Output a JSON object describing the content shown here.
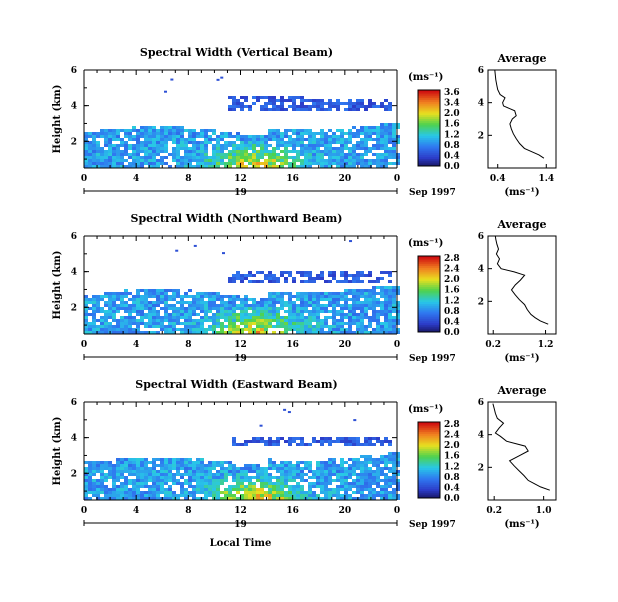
{
  "chart_data": [
    {
      "type": "heatmap",
      "title": "Spectral Width (Vertical Beam)",
      "ylabel": "Height (km)",
      "yticks": [
        "6",
        "4",
        "2"
      ],
      "xticks": [
        "0",
        "4",
        "8",
        "12",
        "16",
        "20",
        "0"
      ],
      "xlim": [
        0,
        24
      ],
      "ylim": [
        0.5,
        6.0
      ],
      "date_marker": "19",
      "date_suffix": "Sep 1997",
      "colorbar": {
        "unit": "(ms⁻¹)",
        "ticks": [
          "3.6",
          "3.4",
          "2.0",
          "1.6",
          "1.2",
          "0.8",
          "0.4",
          "0.0"
        ],
        "max": 3.6
      },
      "main_band_top_km": 2.6,
      "high_layer_km": [
        3.8,
        4.6
      ],
      "average": {
        "title": "Average",
        "xlabel": "(ms⁻¹)",
        "xticks": [
          "0.4",
          "1.4"
        ],
        "xlim": [
          0.2,
          1.6
        ],
        "yticks": [
          "6",
          "4",
          "2"
        ],
        "ylim": [
          0,
          6
        ],
        "height_km": [
          0.6,
          0.8,
          1.0,
          1.2,
          1.5,
          1.8,
          2.1,
          2.4,
          2.7,
          3.0,
          3.2,
          3.5,
          3.8,
          4.0,
          4.3,
          4.5,
          4.8,
          5.1,
          5.4,
          5.7,
          6.0
        ],
        "values": [
          1.35,
          1.25,
          1.1,
          0.95,
          0.85,
          0.78,
          0.72,
          0.68,
          0.65,
          0.7,
          0.78,
          0.75,
          0.52,
          0.5,
          0.55,
          0.45,
          0.4,
          0.38,
          0.36,
          0.35,
          0.34
        ]
      }
    },
    {
      "type": "heatmap",
      "title": "Spectral Width (Northward Beam)",
      "ylabel": "Height (km)",
      "yticks": [
        "6",
        "4",
        "2"
      ],
      "xticks": [
        "0",
        "4",
        "8",
        "12",
        "16",
        "20",
        "0"
      ],
      "xlim": [
        0,
        24
      ],
      "ylim": [
        0.5,
        6.0
      ],
      "date_marker": "19",
      "date_suffix": "Sep 1997",
      "colorbar": {
        "unit": "(ms⁻¹)",
        "ticks": [
          "2.8",
          "2.4",
          "2.0",
          "1.6",
          "1.2",
          "0.8",
          "0.4",
          "0.0"
        ],
        "max": 2.8
      },
      "main_band_top_km": 2.8,
      "high_layer_km": [
        3.5,
        4.2
      ],
      "average": {
        "title": "Average",
        "xlabel": "(ms⁻¹)",
        "xticks": [
          "0.2",
          "1.2"
        ],
        "xlim": [
          0.1,
          1.4
        ],
        "yticks": [
          "6",
          "4",
          "2"
        ],
        "ylim": [
          0,
          6
        ],
        "height_km": [
          0.6,
          0.8,
          1.0,
          1.2,
          1.5,
          1.8,
          2.1,
          2.4,
          2.7,
          3.0,
          3.3,
          3.6,
          3.8,
          4.0,
          4.3,
          4.6,
          4.9,
          5.2,
          5.5,
          5.8,
          6.0
        ],
        "values": [
          1.25,
          1.1,
          1.0,
          0.92,
          0.85,
          0.8,
          0.7,
          0.62,
          0.55,
          0.62,
          0.72,
          0.8,
          0.6,
          0.35,
          0.28,
          0.32,
          0.26,
          0.3,
          0.27,
          0.25,
          0.24
        ]
      }
    },
    {
      "type": "heatmap",
      "title": "Spectral Width (Eastward Beam)",
      "ylabel": "Height (km)",
      "yticks": [
        "6",
        "4",
        "2"
      ],
      "xticks": [
        "0",
        "4",
        "8",
        "12",
        "16",
        "20",
        "0"
      ],
      "xlim": [
        0,
        24
      ],
      "ylim": [
        0.5,
        6.0
      ],
      "date_marker": "19",
      "date_suffix": "Sep 1997",
      "xlabel": "Local Time",
      "colorbar": {
        "unit": "(ms⁻¹)",
        "ticks": [
          "2.8",
          "2.4",
          "2.0",
          "1.6",
          "1.2",
          "0.8",
          "0.4",
          "0.0"
        ],
        "max": 2.8
      },
      "main_band_top_km": 2.7,
      "high_layer_km": [
        3.6,
        4.2
      ],
      "average": {
        "title": "Average",
        "xlabel": "(ms⁻¹)",
        "xticks": [
          "0.2",
          "1.0"
        ],
        "xlim": [
          0.1,
          1.2
        ],
        "yticks": [
          "6",
          "4",
          "2"
        ],
        "ylim": [
          0,
          6
        ],
        "height_km": [
          0.6,
          0.8,
          1.0,
          1.2,
          1.5,
          1.8,
          2.1,
          2.4,
          2.7,
          3.0,
          3.3,
          3.6,
          3.9,
          4.1,
          4.4,
          4.7,
          5.0,
          5.3,
          5.6,
          5.9
        ],
        "values": [
          1.1,
          0.95,
          0.85,
          0.75,
          0.68,
          0.6,
          0.52,
          0.45,
          0.6,
          0.75,
          0.7,
          0.4,
          0.3,
          0.22,
          0.28,
          0.35,
          0.25,
          0.22,
          0.2,
          0.18
        ]
      }
    }
  ]
}
